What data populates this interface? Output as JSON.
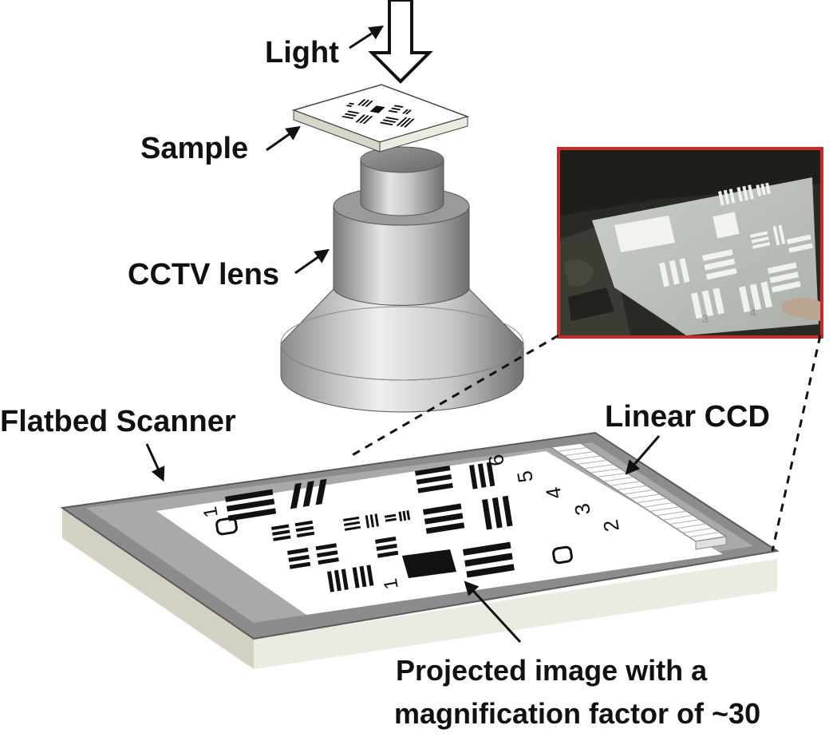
{
  "labels": {
    "light": "Light",
    "sample": "Sample",
    "cctv_lens": "CCTV lens",
    "flatbed_scanner": "Flatbed Scanner",
    "linear_ccd": "Linear CCD",
    "projected_line1": "Projected image with a",
    "projected_line2": "magnification factor of ~30"
  },
  "target_numerals": {
    "big_left": "1",
    "big_bottom": "1",
    "right_col": [
      "6",
      "5",
      "4",
      "3",
      "2"
    ],
    "photo": [
      "3",
      "4"
    ]
  },
  "colors": {
    "text": "#111111",
    "photo_border": "#cc2a2a",
    "scanner_top": "#8a8a8a",
    "scanner_side": "#e6e4da",
    "lens_gray": "#a8a8a8",
    "target_bars": "#111111"
  }
}
